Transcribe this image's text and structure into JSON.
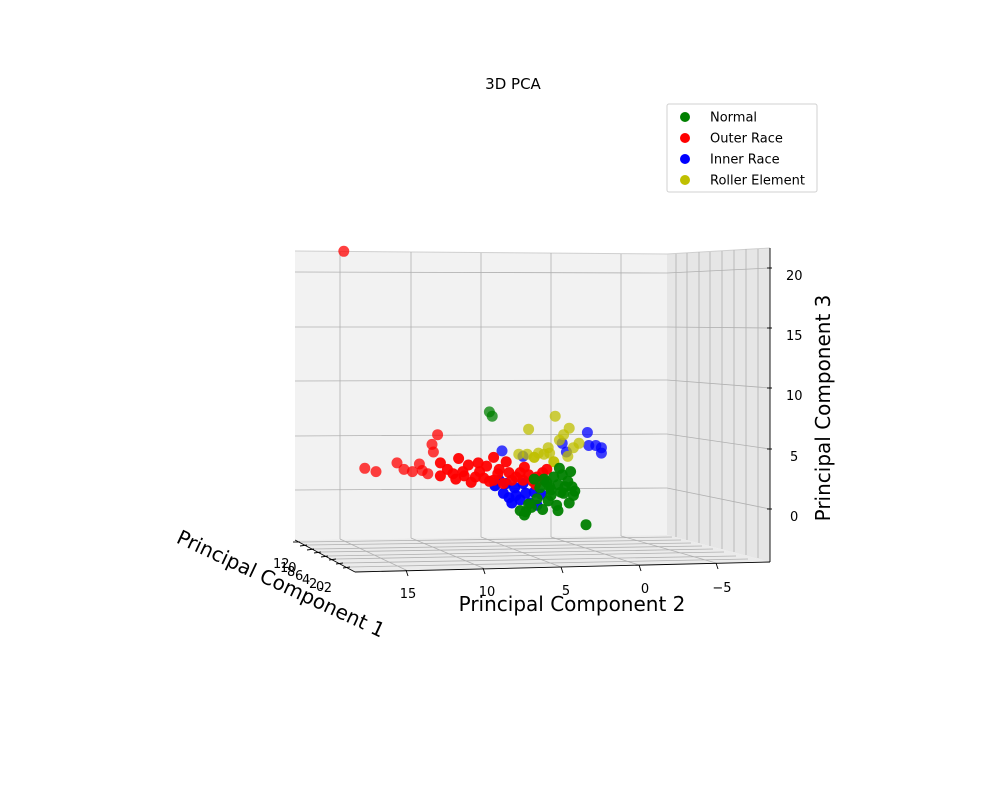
{
  "chart_data": {
    "type": "scatter",
    "projection": "3d",
    "title": "3D PCA",
    "xlabel": "Principal Component 1",
    "ylabel": "Principal Component 2",
    "zlabel": "Principal Component 3",
    "xlim": [
      -3,
      13
    ],
    "ylim": [
      -7,
      17
    ],
    "zlim": [
      -5,
      22
    ],
    "xticks": [
      "12",
      "10",
      "8",
      "6",
      "4",
      "2",
      "0",
      "-2"
    ],
    "yticks": [
      "15",
      "10",
      "5",
      "0",
      "−5"
    ],
    "zticks": [
      "20",
      "15",
      "10",
      "5",
      "0"
    ],
    "grid": true,
    "legend_position": "top-right",
    "series": [
      {
        "name": "Normal",
        "color": "#008000",
        "points": [
          [
            0,
            -0.5,
            0.5
          ],
          [
            0,
            0,
            0
          ],
          [
            0,
            0.5,
            1
          ],
          [
            0,
            0,
            -0.5
          ],
          [
            0,
            -1,
            0.3
          ],
          [
            0,
            -1.2,
            0.8
          ],
          [
            0,
            0.2,
            -1
          ],
          [
            0,
            0.8,
            0.2
          ],
          [
            0,
            1,
            -0.8
          ],
          [
            0,
            -0.4,
            -1.4
          ],
          [
            0,
            0.6,
            -1.8
          ],
          [
            0,
            1.4,
            -1.6
          ],
          [
            0,
            -0.8,
            1.4
          ],
          [
            0,
            -0.2,
            1.2
          ],
          [
            0,
            -1.4,
            1.7
          ],
          [
            0,
            -0.9,
            -0.3
          ],
          [
            0,
            0.3,
            0.7
          ],
          [
            0,
            -1.6,
            -0.5
          ],
          [
            0,
            -0.6,
            2
          ],
          [
            0,
            1.2,
            1
          ],
          [
            0,
            4.4,
            7.2
          ],
          [
            0,
            4.2,
            6.8
          ],
          [
            0,
            -2.5,
            -3.2
          ],
          [
            0,
            -0.7,
            -0.2
          ],
          [
            0,
            0.1,
            0.3
          ],
          [
            0,
            1.6,
            -1.3
          ],
          [
            0,
            1.8,
            -2
          ],
          [
            0,
            2.2,
            -1.9
          ],
          [
            0,
            1.9,
            -2.3
          ],
          [
            0,
            -0.5,
            -1.9
          ],
          [
            0,
            -1.5,
            0.3
          ],
          [
            0,
            -1.7,
            -0.1
          ],
          [
            0,
            -1.3,
            -1.2
          ]
        ]
      },
      {
        "name": "Outer Race",
        "color": "#ff0000",
        "points": [
          [
            0,
            14.8,
            22
          ],
          [
            0,
            11,
            2.5
          ],
          [
            0,
            12.5,
            1.7
          ],
          [
            0,
            13.3,
            2
          ],
          [
            0,
            9.4,
            2.4
          ],
          [
            0,
            10.5,
            1.9
          ],
          [
            0,
            8.5,
            4.2
          ],
          [
            0,
            8.4,
            3.5
          ],
          [
            0,
            8.1,
            5.1
          ],
          [
            0,
            7.9,
            2.5
          ],
          [
            0,
            6.6,
            2.9
          ],
          [
            0,
            5.2,
            2.5
          ],
          [
            0,
            4.1,
            3
          ],
          [
            0,
            3.2,
            2.6
          ],
          [
            0,
            4.6,
            2.2
          ],
          [
            0,
            7,
            1.5
          ],
          [
            0,
            6.2,
            1.3
          ],
          [
            0,
            5.4,
            1.2
          ],
          [
            0,
            4.8,
            1.1
          ],
          [
            0,
            3.8,
            1.5
          ],
          [
            0,
            3,
            1.6
          ],
          [
            0,
            2.2,
            1.6
          ],
          [
            0,
            1.6,
            1.4
          ],
          [
            0,
            1,
            1.2
          ],
          [
            0,
            0.6,
            1.6
          ],
          [
            0,
            2.8,
            0.9
          ],
          [
            0,
            2,
            0.9
          ],
          [
            0,
            1.3,
            0.8
          ],
          [
            0,
            5.9,
            2.3
          ],
          [
            0,
            7.4,
            1.9
          ],
          [
            0,
            8.8,
            1.5
          ],
          [
            0,
            9.9,
            1.7
          ],
          [
            0,
            5.7,
            0.7
          ],
          [
            0,
            6.8,
            1
          ],
          [
            0,
            1.9,
            2.1
          ],
          [
            0,
            2.5,
            1.2
          ],
          [
            0,
            3.4,
            0.6
          ],
          [
            0,
            4.4,
            0.8
          ],
          [
            0,
            0.5,
            0.9
          ],
          [
            0,
            1.1,
            0.5
          ],
          [
            0,
            7.9,
            1.3
          ],
          [
            0,
            9.2,
            1.8
          ],
          [
            0,
            6.3,
            1.7
          ],
          [
            0,
            3.7,
            1.9
          ],
          [
            0,
            4.1,
            0.9
          ],
          [
            0,
            5.1,
            1.7
          ],
          [
            0,
            0.3,
            1.9
          ]
        ]
      },
      {
        "name": "Inner Race",
        "color": "#0000ff",
        "points": [
          [
            0,
            -3.2,
            4.1
          ],
          [
            0,
            -3.6,
            3.9
          ],
          [
            0,
            -2.7,
            4.1
          ],
          [
            0,
            -3.6,
            3.4
          ],
          [
            0,
            -2.6,
            5.3
          ],
          [
            0,
            -1.1,
            3.5
          ],
          [
            0,
            -0.8,
            4.3
          ],
          [
            0,
            2,
            3.1
          ],
          [
            0,
            3.5,
            3.6
          ],
          [
            0,
            2.5,
            -0.5
          ],
          [
            0,
            2.2,
            -0.9
          ],
          [
            0,
            1.8,
            -0.3
          ],
          [
            0,
            3,
            -0.7
          ],
          [
            0,
            2.6,
            0.2
          ],
          [
            0,
            3.2,
            0.6
          ],
          [
            0,
            1.5,
            -1.2
          ],
          [
            0,
            0.7,
            -0.4
          ],
          [
            0,
            2,
            0.6
          ],
          [
            0,
            3.4,
            -0.3
          ],
          [
            0,
            4,
            0.4
          ],
          [
            0,
            2.8,
            -1.2
          ],
          [
            0,
            1,
            -1.4
          ],
          [
            0,
            1.2,
            -0.2
          ],
          [
            0,
            3.7,
            0.9
          ]
        ]
      },
      {
        "name": "Roller Element",
        "color": "#bfbf00",
        "points": [
          [
            0,
            -0.3,
            6.8
          ],
          [
            0,
            1.6,
            5.6
          ],
          [
            0,
            -1.3,
            5.7
          ],
          [
            0,
            -0.6,
            4.6
          ],
          [
            0,
            -0.9,
            5.1
          ],
          [
            0,
            0.2,
            3.9
          ],
          [
            0,
            0.9,
            3.4
          ],
          [
            0,
            0.5,
            3.3
          ],
          [
            0,
            2.3,
            3.3
          ],
          [
            0,
            -0.2,
            2.6
          ],
          [
            0,
            -2,
            4.3
          ],
          [
            0,
            -1.6,
            3.9
          ],
          [
            0,
            1.2,
            3
          ],
          [
            0,
            0.1,
            3.4
          ],
          [
            0,
            1.7,
            3.3
          ],
          [
            0,
            -1.2,
            3.1
          ]
        ]
      }
    ]
  }
}
